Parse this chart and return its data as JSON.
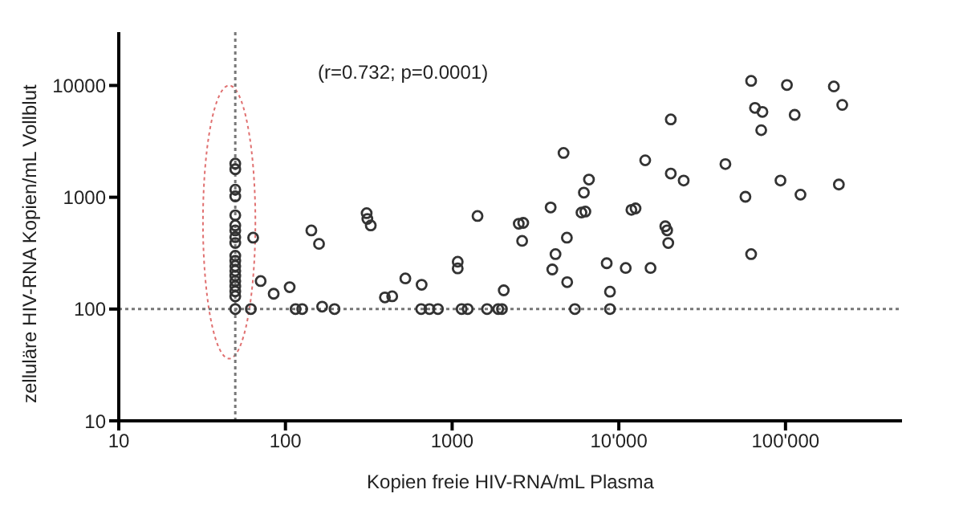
{
  "chart_data": {
    "type": "scatter",
    "xlabel": "Kopien freie HIV-RNA/mL Plasma",
    "ylabel": "zelluläre HIV-RNA Kopien/mL Vollblut",
    "annotations": [
      "(r=0.732; p=0.0001)"
    ],
    "log": "xy",
    "xlim": [
      10,
      500000
    ],
    "xticks": [
      10,
      100,
      1000,
      {
        "value": 10000,
        "label": "10'000"
      },
      {
        "value": 100000,
        "label": "100'000"
      }
    ],
    "ylim": [
      10,
      30000
    ],
    "yticks": [
      10,
      100,
      1000,
      10000
    ],
    "grid": false,
    "legend": false,
    "marker": "circle",
    "ref_lines": [
      {
        "axis": "x",
        "value": 50,
        "color": "#777777",
        "line_style": "dotted"
      },
      {
        "axis": "y",
        "value": 100,
        "color": "#777777",
        "line_style": "dotted"
      }
    ],
    "series": [
      {
        "color": "#333333",
        "x": [
          50,
          50,
          50,
          50,
          50,
          50,
          50,
          50,
          50,
          50,
          50,
          50,
          50,
          50,
          50,
          50,
          50,
          50,
          50,
          64,
          62,
          71,
          85,
          106,
          115,
          126,
          143,
          159,
          166,
          197,
          307,
          310,
          325,
          395,
          437,
          524,
          656,
          652,
          731,
          822,
          1080,
          1080,
          1140,
          1240,
          1420,
          1620,
          1890,
          1990,
          2040,
          2510,
          2670,
          2630,
          3900,
          4170,
          3990,
          4660,
          4880,
          4900,
          5450,
          5970,
          6300,
          6170,
          6620,
          8460,
          8850,
          8850,
          11000,
          11900,
          12600,
          14400,
          15500,
          19000,
          19500,
          19800,
          20500,
          20500,
          24500,
          43600,
          57500,
          62200,
          62200,
          65600,
          72700,
          71500,
          93300,
          102000,
          113500,
          123000,
          195000,
          219000,
          209000
        ],
        "values": [
          2000,
          1780,
          1170,
          1020,
          690,
          560,
          505,
          440,
          390,
          300,
          270,
          243,
          220,
          198,
          178,
          160,
          144,
          130,
          100,
          435,
          100,
          178,
          137,
          157,
          100,
          100,
          505,
          383,
          105,
          100,
          720,
          640,
          560,
          127,
          130,
          188,
          165,
          100,
          100,
          100,
          265,
          231,
          100,
          100,
          680,
          100,
          100,
          100,
          147,
          580,
          590,
          407,
          810,
          310,
          226,
          2490,
          435,
          174,
          100,
          730,
          745,
          1100,
          1440,
          257,
          143,
          100,
          233,
          771,
          795,
          2140,
          233,
          550,
          506,
          390,
          4970,
          1630,
          1410,
          1980,
          1010,
          11000,
          310,
          6300,
          5800,
          3980,
          1410,
          10100,
          5460,
          1055,
          9800,
          6700,
          1300
        ]
      }
    ]
  }
}
